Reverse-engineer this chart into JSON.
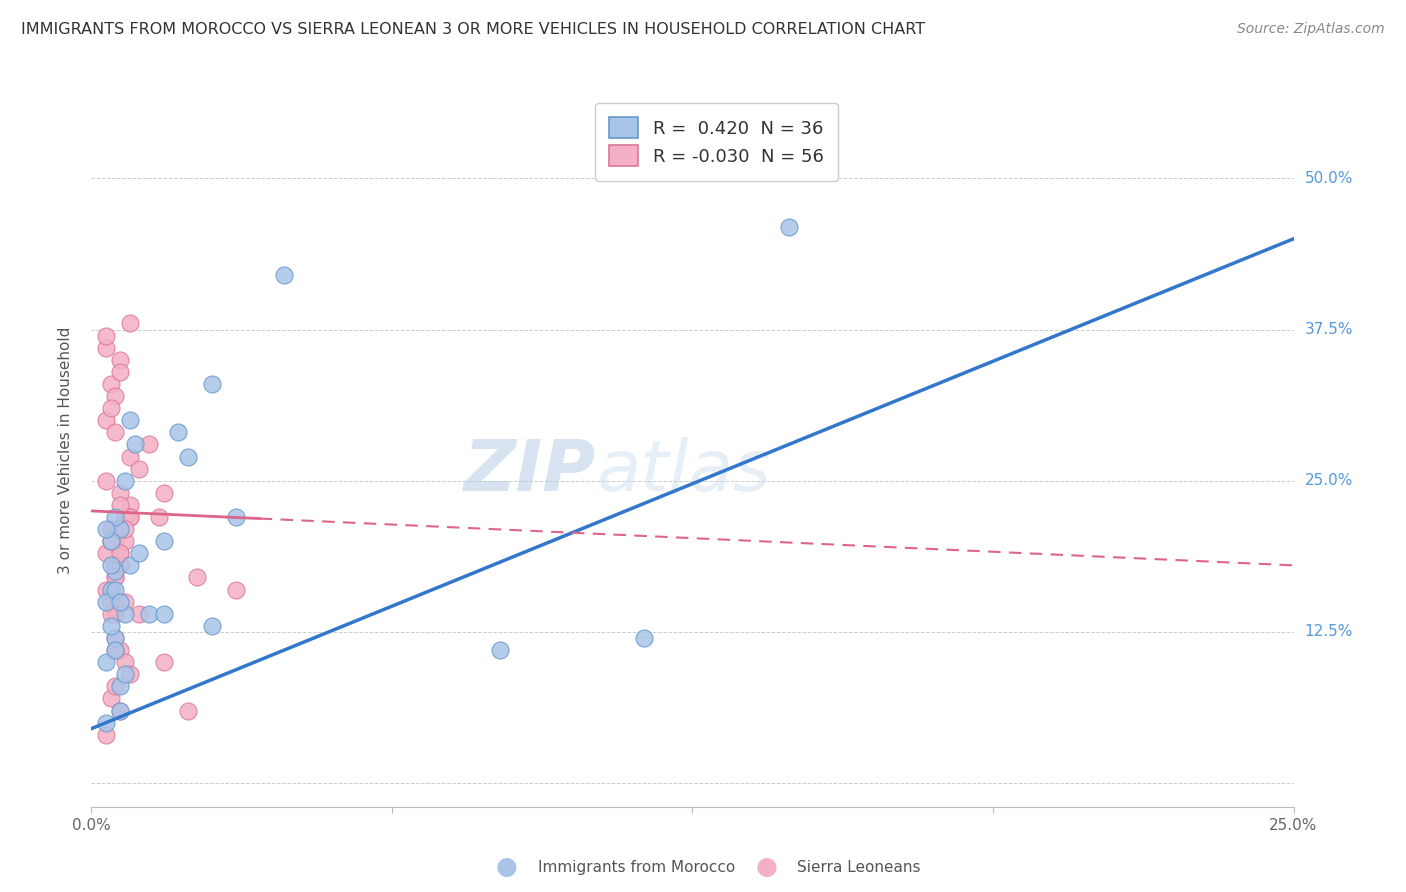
{
  "title": "IMMIGRANTS FROM MOROCCO VS SIERRA LEONEAN 3 OR MORE VEHICLES IN HOUSEHOLD CORRELATION CHART",
  "source": "Source: ZipAtlas.com",
  "ylabel": "3 or more Vehicles in Household",
  "legend_blue_label": "R =  0.420  N = 36",
  "legend_pink_label": "R = -0.030  N = 56",
  "bottom_legend_blue": "Immigrants from Morocco",
  "bottom_legend_pink": "Sierra Leoneans",
  "watermark_zip": "ZIP",
  "watermark_atlas": "atlas",
  "xlim": [
    0.0,
    25.0
  ],
  "ylim": [
    -2.0,
    57.0
  ],
  "background_color": "#ffffff",
  "plot_bg_color": "#ffffff",
  "grid_color": "#cccccc",
  "blue_dot_color": "#aac4e8",
  "blue_dot_edge": "#6699cc",
  "pink_dot_color": "#f4b0c4",
  "pink_dot_edge": "#dd7799",
  "blue_line_color": "#3377cc",
  "pink_line_color": "#dd6688",
  "title_color": "#333333",
  "right_axis_color": "#5599dd",
  "blue_trend_x0": 0.0,
  "blue_trend_y0": 4.5,
  "blue_trend_x1": 25.0,
  "blue_trend_y1": 45.0,
  "pink_trend_x0": 0.0,
  "pink_trend_y0": 22.5,
  "pink_trend_x1": 25.0,
  "pink_trend_y1": 18.0,
  "pink_solid_end": 3.5,
  "blue_scatter_x": [
    0.5,
    0.4,
    0.3,
    0.8,
    1.5,
    1.0,
    0.6,
    0.5,
    0.4,
    0.7,
    0.3,
    0.6,
    1.2,
    2.0,
    0.5,
    0.6,
    0.8,
    1.8,
    0.4,
    0.3,
    2.5,
    4.0,
    0.7,
    0.9,
    0.5,
    0.4,
    3.0,
    0.3,
    0.6,
    14.5,
    0.5,
    0.7,
    1.5,
    2.5,
    11.5,
    8.5
  ],
  "blue_scatter_y": [
    17.5,
    16.0,
    15.0,
    18.0,
    20.0,
    19.0,
    21.0,
    22.0,
    18.0,
    14.0,
    10.0,
    8.0,
    14.0,
    27.0,
    12.0,
    6.0,
    30.0,
    29.0,
    20.0,
    5.0,
    33.0,
    42.0,
    25.0,
    28.0,
    16.0,
    13.0,
    22.0,
    21.0,
    15.0,
    46.0,
    11.0,
    9.0,
    14.0,
    13.0,
    12.0,
    11.0
  ],
  "pink_scatter_x": [
    0.3,
    0.8,
    0.6,
    0.4,
    0.5,
    1.2,
    0.3,
    0.6,
    0.8,
    1.5,
    0.4,
    0.5,
    0.3,
    0.7,
    1.0,
    0.8,
    0.3,
    0.5,
    0.6,
    0.4,
    0.5,
    0.8,
    0.4,
    0.5,
    0.6,
    0.7,
    0.4,
    0.5,
    0.3,
    0.6,
    0.8,
    0.5,
    0.4,
    0.6,
    0.7,
    1.4,
    0.3,
    0.5,
    0.7,
    1.0,
    0.4,
    0.6,
    3.0,
    0.4,
    2.2,
    0.5,
    0.6,
    0.7,
    0.8,
    0.4,
    0.5,
    0.6,
    0.3,
    2.0,
    1.5,
    0.5
  ],
  "pink_scatter_y": [
    36.0,
    38.0,
    35.0,
    33.0,
    32.0,
    28.0,
    30.0,
    34.0,
    27.0,
    24.0,
    31.0,
    29.0,
    25.0,
    22.0,
    26.0,
    23.0,
    37.0,
    20.0,
    19.0,
    21.0,
    18.0,
    22.0,
    16.0,
    17.0,
    24.0,
    20.0,
    15.0,
    14.0,
    19.0,
    18.0,
    22.0,
    21.0,
    20.0,
    23.0,
    21.0,
    22.0,
    16.0,
    17.0,
    15.0,
    14.0,
    20.0,
    19.0,
    16.0,
    14.0,
    17.0,
    12.0,
    11.0,
    10.0,
    9.0,
    7.0,
    8.0,
    6.0,
    4.0,
    6.0,
    10.0,
    11.0
  ]
}
